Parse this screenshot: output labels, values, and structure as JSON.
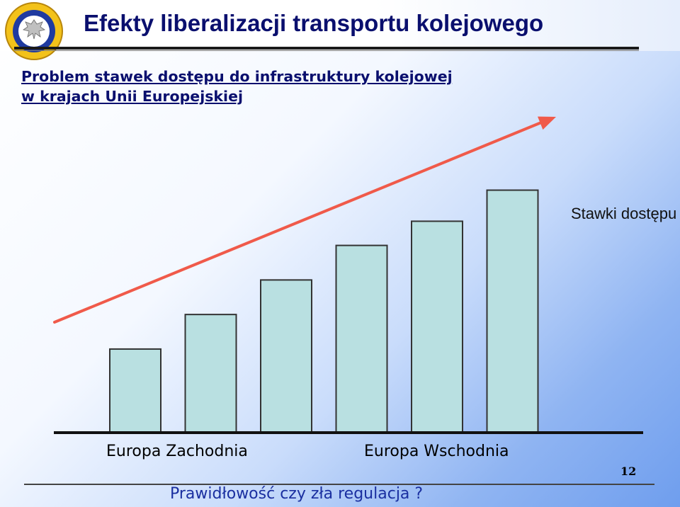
{
  "slide": {
    "title": "Efekty liberalizacji transportu kolejowego",
    "subtitle_line1": "Problem stawek dostępu do infrastruktury kolejowej",
    "subtitle_line2": "w krajach Unii Europejskiej",
    "footer": "Prawidłowość czy zła regulacja ?",
    "page_number": "12",
    "logo_icon": "eagle-emblem-icon"
  },
  "chart_data": {
    "type": "bar",
    "categories": [
      "",
      "",
      "",
      "",
      "",
      ""
    ],
    "values": [
      2.4,
      3.4,
      4.4,
      5.4,
      6.1,
      7.0
    ],
    "series": [
      {
        "name": "Stawki dostępu",
        "values": [
          2.4,
          3.4,
          4.4,
          5.4,
          6.1,
          7.0
        ]
      }
    ],
    "ylim": [
      0,
      8.2
    ],
    "grid": false,
    "axis_group_labels": [
      "Europa Zachodnia",
      "Europa Wschodnia"
    ],
    "trend_arrow": true,
    "colors": {
      "bar_fill": "#b9e0e1",
      "bar_stroke": "#333333",
      "arrow": "#f05a4a",
      "axis": "#111111"
    }
  }
}
